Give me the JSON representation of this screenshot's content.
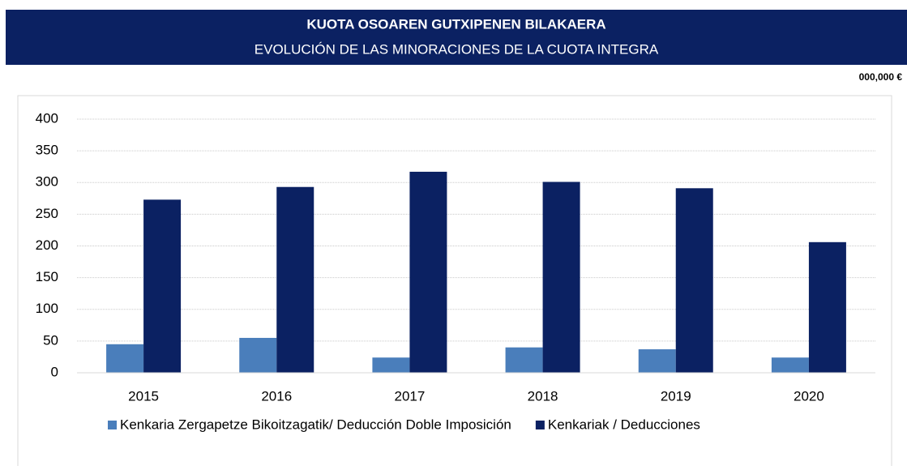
{
  "chart_data": {
    "type": "bar",
    "title": "KUOTA OSOAREN GUTXIPENEN BILAKAERA",
    "subtitle": "EVOLUCIÓN DE LAS MINORACIONES DE LA CUOTA INTEGRA",
    "unit": "000,000 €",
    "categories": [
      "2015",
      "2016",
      "2017",
      "2018",
      "2019",
      "2020"
    ],
    "series": [
      {
        "name": "Kenkaria Zergapetze Bikoitzagatik/ Deducción Doble Imposición",
        "color": "#4a7ebb",
        "values": [
          45,
          55,
          24,
          40,
          37,
          24
        ]
      },
      {
        "name": "Kenkariak / Deducciones",
        "color": "#0b2162",
        "values": [
          273,
          293,
          317,
          301,
          291,
          206
        ]
      }
    ],
    "ylim": [
      0,
      400
    ],
    "yticks": [
      0,
      50,
      100,
      150,
      200,
      250,
      300,
      350,
      400
    ],
    "grid": true,
    "legend": "bottom"
  }
}
